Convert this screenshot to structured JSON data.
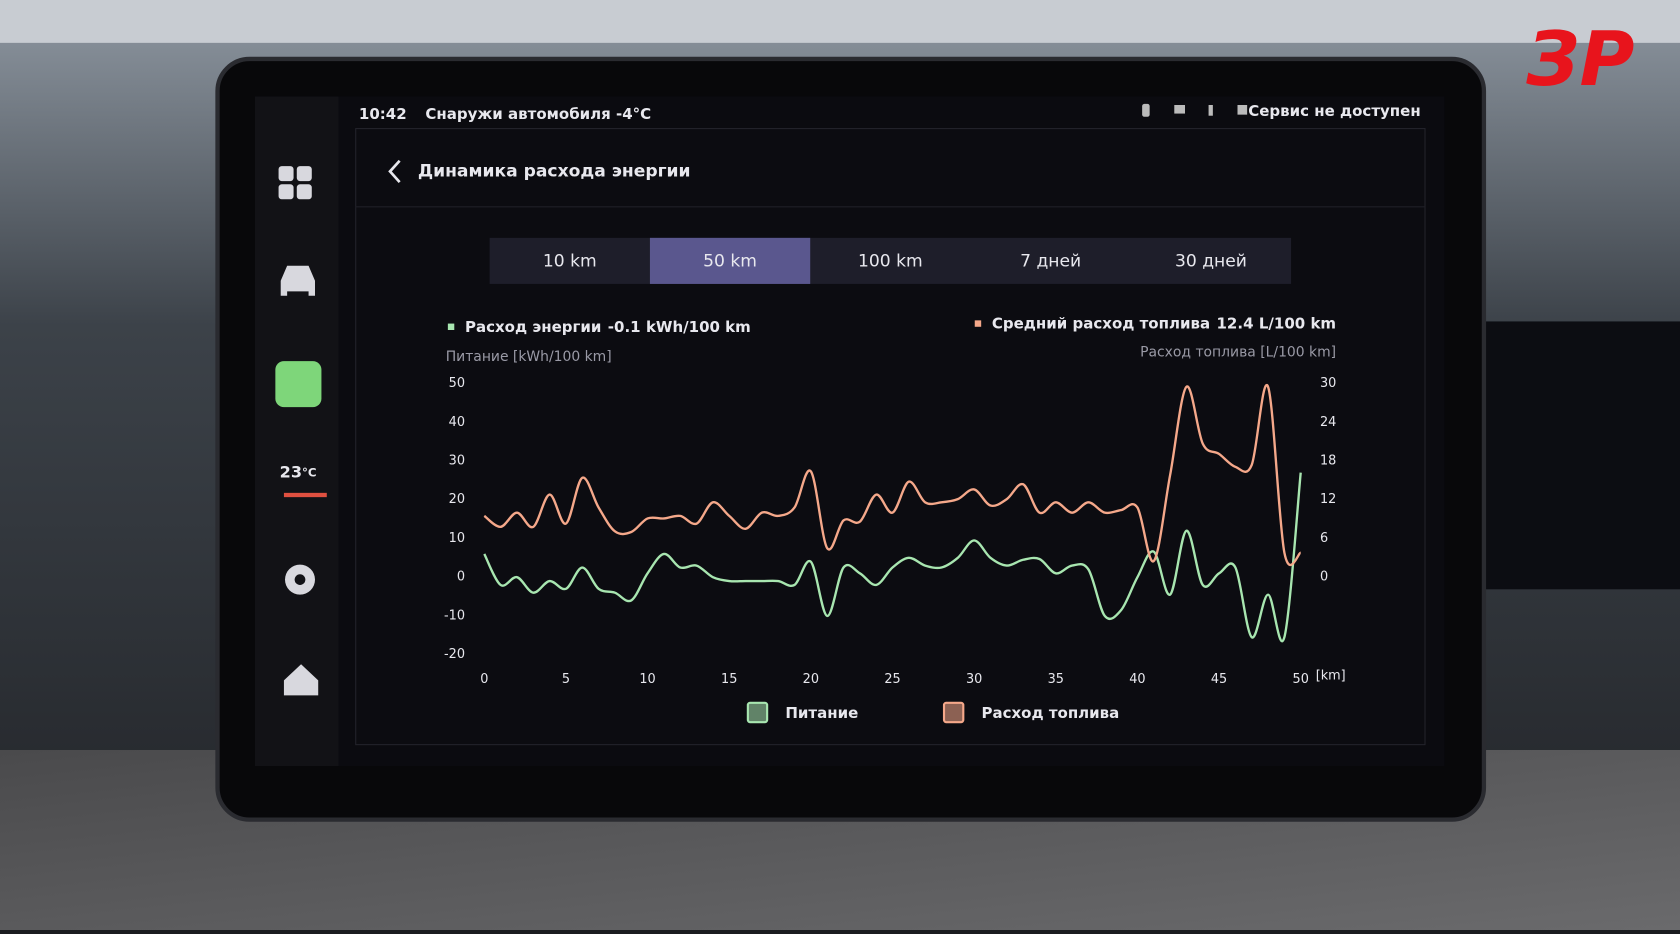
{
  "watermark": "ЗР",
  "status_bar": {
    "time": "10:42",
    "outside": "Снаружи автомобиля -4°C",
    "service": "Сервис не доступен"
  },
  "sidebar": {
    "temperature": 23,
    "unit": "°C"
  },
  "header": {
    "title": "Динамика расхода энергии"
  },
  "tabs": {
    "items": [
      "10 km",
      "50 km",
      "100 km",
      "7 дней",
      "30 дней"
    ],
    "active": 1
  },
  "chart_data": {
    "type": "line",
    "summary": [
      {
        "label": "Расход энергии",
        "value": -0.1,
        "unit": "kWh/100 km"
      },
      {
        "label": "Средний расход топлива",
        "value": 12.4,
        "unit": "L/100 km"
      }
    ],
    "ylabel": "Питание [kWh/100 km]",
    "y2label": "Расход топлива [L/100 km]",
    "xlabel": "[km]",
    "xlim": [
      0,
      50
    ],
    "xticks": [
      0,
      5,
      10,
      15,
      20,
      25,
      30,
      35,
      40,
      45,
      50
    ],
    "ylim": [
      -20,
      50
    ],
    "yticks": [
      -20,
      -10,
      0,
      10,
      20,
      30,
      40,
      50
    ],
    "y2lim": [
      -12,
      30
    ],
    "y2ticks": [
      0,
      6,
      12,
      18,
      24,
      30
    ],
    "grid": false,
    "x": [
      0,
      1,
      2,
      3,
      4,
      5,
      6,
      7,
      8,
      9,
      10,
      11,
      12,
      13,
      14,
      15,
      16,
      17,
      18,
      19,
      20,
      21,
      22,
      23,
      24,
      25,
      26,
      27,
      28,
      29,
      30,
      31,
      32,
      33,
      34,
      35,
      36,
      37,
      38,
      39,
      40,
      41,
      42,
      43,
      44,
      45,
      46,
      47,
      48,
      49,
      50
    ],
    "series": [
      {
        "name": "Питание",
        "color": "#a8e6b0",
        "axis": "y",
        "values": [
          6,
          -2,
          0,
          -4,
          -1,
          -3,
          2.5,
          -3,
          -4,
          -6,
          1,
          6,
          2.5,
          3,
          0,
          -1,
          -1,
          -1,
          -1,
          -2,
          4,
          -10,
          2.5,
          1,
          -2,
          2.5,
          5,
          3,
          2.5,
          5,
          9.5,
          5,
          3,
          4.5,
          4.7,
          1,
          3,
          2,
          -10,
          -8.5,
          0,
          6.6,
          -4.5,
          12,
          -2,
          1,
          2.5,
          -15.5,
          -4.5,
          -15.5,
          27
        ]
      },
      {
        "name": "Расход топлива",
        "color": "#f5a88a",
        "axis": "y2",
        "values": [
          9.5,
          7.8,
          10,
          7.8,
          12.8,
          8.3,
          15.4,
          10.8,
          7.1,
          7,
          9.1,
          9.1,
          9.5,
          8.3,
          11.6,
          9.5,
          7.5,
          10,
          9.5,
          10.8,
          16.4,
          4.5,
          8.8,
          8.6,
          12.8,
          10,
          14.8,
          11.6,
          11.6,
          12.1,
          13.6,
          11.1,
          12.1,
          14.4,
          10,
          11.6,
          10,
          11.6,
          10,
          10.4,
          10.8,
          2.5,
          15.8,
          29.5,
          20.7,
          19.1,
          17.1,
          17.4,
          29.5,
          3.8,
          3.8
        ]
      }
    ]
  }
}
